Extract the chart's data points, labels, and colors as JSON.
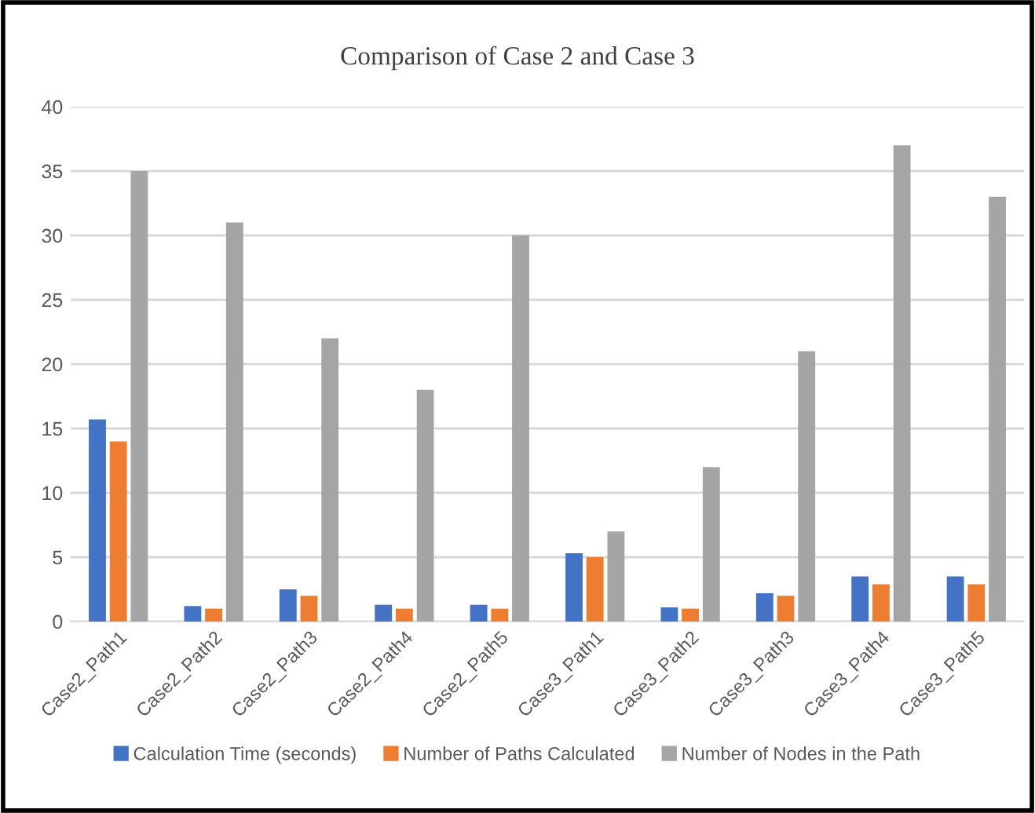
{
  "chart_data": {
    "type": "bar",
    "title": "Comparison of Case 2 and Case 3",
    "categories": [
      "Case2_Path1",
      "Case2_Path2",
      "Case2_Path3",
      "Case2_Path4",
      "Case2_Path5",
      "Case3_Path1",
      "Case3_Path2",
      "Case3_Path3",
      "Case3_Path4",
      "Case3_Path5"
    ],
    "series": [
      {
        "name": "Calculation Time (seconds)",
        "color": "#4472c4",
        "values": [
          15.7,
          1.2,
          2.5,
          1.3,
          1.3,
          5.3,
          1.1,
          2.2,
          3.5,
          3.5
        ]
      },
      {
        "name": "Number of Paths Calculated",
        "color": "#ed7d31",
        "values": [
          14,
          1,
          2,
          1,
          1,
          5,
          1,
          2,
          2.9,
          2.9
        ]
      },
      {
        "name": "Number of Nodes in the Path",
        "color": "#a5a5a5",
        "values": [
          35,
          31,
          22,
          18,
          30,
          7,
          12,
          21,
          37,
          33
        ]
      }
    ],
    "ylim": [
      0,
      40
    ],
    "yticks": [
      0,
      5,
      10,
      15,
      20,
      25,
      30,
      35,
      40
    ],
    "grid": "y",
    "legend": "bottom"
  }
}
